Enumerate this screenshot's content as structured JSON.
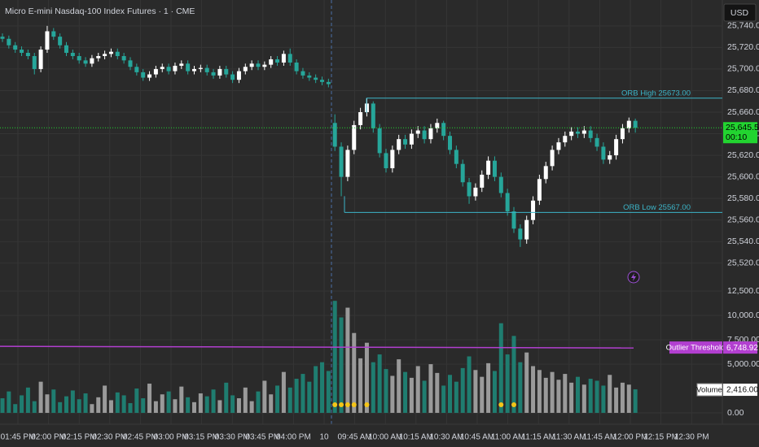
{
  "header": {
    "title": "Micro E-mini Nasdaq-100 Index Futures · 1 · CME",
    "currency": "USD"
  },
  "chart_data": [
    {
      "type": "candlestick",
      "up_color": "#ffffff",
      "down_color": "#26a69a",
      "open": [
        25730,
        25728,
        25722,
        25718,
        25715,
        25712,
        25700,
        25718,
        25735,
        25730,
        25722,
        25715,
        25712,
        25708,
        25705,
        25710,
        25712,
        25714,
        25716,
        25712,
        25708,
        25702,
        25697,
        25692,
        25695,
        25700,
        25702,
        25698,
        25703,
        25705,
        25698,
        25700,
        25701,
        25697,
        25694,
        25700,
        25695,
        25690,
        25698,
        25702,
        25705,
        25702,
        25704,
        25709,
        25706,
        25714,
        25706,
        25698,
        25694,
        25692,
        25690,
        25688,
        25650,
        25628,
        25600,
        25625,
        25648,
        25660,
        25668,
        25645,
        25622,
        25608,
        25625,
        25635,
        25630,
        25640,
        25643,
        25635,
        25645,
        25650,
        25638,
        25625,
        25612,
        25595,
        25582,
        25590,
        25602,
        25615,
        25600,
        25585,
        25568,
        25552,
        25542,
        25560,
        25578,
        25598,
        25610,
        25625,
        25632,
        25638,
        25642,
        25640,
        25643,
        25636,
        25628,
        25616,
        25620,
        25635,
        25645,
        25652
      ],
      "high": [
        25733,
        25731,
        25725,
        25721,
        25718,
        25715,
        25721,
        25740,
        25738,
        25733,
        25725,
        25718,
        25715,
        25711,
        25713,
        25715,
        25717,
        25719,
        25719,
        25715,
        25711,
        25705,
        25700,
        25698,
        25703,
        25705,
        25705,
        25706,
        25708,
        25708,
        25703,
        25704,
        25704,
        25700,
        25703,
        25703,
        25698,
        25701,
        25705,
        25708,
        25708,
        25707,
        25712,
        25712,
        25717,
        25719,
        25709,
        25701,
        25697,
        25695,
        25693,
        25691,
        25658,
        25632,
        25629,
        25652,
        25664,
        25673,
        25670,
        25649,
        25626,
        25629,
        25639,
        25639,
        25644,
        25647,
        25647,
        25649,
        25654,
        25652,
        25642,
        25629,
        25616,
        25599,
        25594,
        25606,
        25619,
        25619,
        25604,
        25589,
        25572,
        25556,
        25564,
        25582,
        25602,
        25614,
        25629,
        25636,
        25642,
        25646,
        25646,
        25647,
        25647,
        25640,
        25632,
        25624,
        25639,
        25649,
        25655,
        25654
      ],
      "low": [
        25725,
        25719,
        25715,
        25712,
        25709,
        25695,
        25697,
        25715,
        25727,
        25719,
        25712,
        25709,
        25705,
        25702,
        25702,
        25707,
        25709,
        25711,
        25709,
        25705,
        25699,
        25694,
        25689,
        25689,
        25692,
        25697,
        25695,
        25695,
        25700,
        25695,
        25695,
        25697,
        25694,
        25691,
        25691,
        25692,
        25687,
        25687,
        25695,
        25699,
        25699,
        25699,
        25701,
        25703,
        25703,
        25703,
        25695,
        25691,
        25689,
        25687,
        25685,
        25683,
        25624,
        25582,
        25596,
        25621,
        25644,
        25656,
        25641,
        25618,
        25604,
        25604,
        25621,
        25626,
        25626,
        25636,
        25631,
        25631,
        25641,
        25634,
        25621,
        25608,
        25591,
        25575,
        25578,
        25586,
        25598,
        25596,
        25581,
        25564,
        25548,
        25535,
        25538,
        25556,
        25574,
        25594,
        25606,
        25621,
        25628,
        25634,
        25636,
        25636,
        25632,
        25624,
        25612,
        25612,
        25616,
        25631,
        25641,
        25641
      ],
      "close": [
        25728,
        25722,
        25718,
        25715,
        25712,
        25700,
        25718,
        25735,
        25730,
        25722,
        25715,
        25712,
        25708,
        25705,
        25710,
        25712,
        25714,
        25716,
        25712,
        25708,
        25702,
        25697,
        25692,
        25695,
        25700,
        25702,
        25698,
        25703,
        25705,
        25698,
        25700,
        25701,
        25697,
        25694,
        25700,
        25695,
        25690,
        25698,
        25702,
        25705,
        25702,
        25704,
        25709,
        25706,
        25714,
        25706,
        25698,
        25694,
        25692,
        25690,
        25688,
        25686,
        25628,
        25600,
        25625,
        25648,
        25660,
        25668,
        25645,
        25622,
        25608,
        25625,
        25635,
        25630,
        25640,
        25643,
        25635,
        25645,
        25650,
        25638,
        25625,
        25612,
        25595,
        25582,
        25590,
        25602,
        25615,
        25600,
        25585,
        25568,
        25552,
        25542,
        25560,
        25578,
        25598,
        25610,
        25625,
        25632,
        25638,
        25642,
        25640,
        25643,
        25636,
        25628,
        25616,
        25620,
        25635,
        25645,
        25652,
        25645.5
      ],
      "last_price_label": "25,645.50",
      "last_price_color": "#22d430",
      "countdown": "00:10",
      "orb_high": {
        "value": 25673,
        "label": "ORB High 25673.00"
      },
      "orb_low": {
        "value": 25567,
        "label": "ORB Low 25567.00"
      },
      "orb_color": "#3cb4c8",
      "ylim": [
        25504,
        25764
      ],
      "yticks": [
        {
          "value": 25740,
          "label": "25,740.00"
        },
        {
          "value": 25720,
          "label": "25,720.00"
        },
        {
          "value": 25700,
          "label": "25,700.00"
        },
        {
          "value": 25680,
          "label": "25,680.00"
        },
        {
          "value": 25660,
          "label": "25,660.00"
        },
        {
          "value": 25640,
          "label": "25,640.00"
        },
        {
          "value": 25620,
          "label": "25,620.00"
        },
        {
          "value": 25600,
          "label": "25,600.00"
        },
        {
          "value": 25580,
          "label": "25,580.00"
        },
        {
          "value": 25560,
          "label": "25,560.00"
        },
        {
          "value": 25540,
          "label": "25,540.00"
        },
        {
          "value": 25520,
          "label": "25,520.00"
        }
      ],
      "time_labels": [
        "01:45 PM",
        "02:00 PM",
        "02:15 PM",
        "02:30 PM",
        "02:45 PM",
        "03:00 PM",
        "03:15 PM",
        "03:30 PM",
        "03:45 PM",
        "04:00 PM",
        "10",
        "09:45 AM",
        "10:00 AM",
        "10:15 AM",
        "10:30 AM",
        "10:45 AM",
        "11:00 AM",
        "11:15 AM",
        "11:30 AM",
        "11:45 AM",
        "12:00 PM",
        "12:15 PM",
        "12:30 PM"
      ],
      "grid": true
    },
    {
      "type": "bar",
      "name": "Volume",
      "up_color": "#9a9a9a",
      "down_color": "#1f7d70",
      "values": [
        1500,
        2200,
        900,
        1800,
        2600,
        1200,
        3200,
        1900,
        2400,
        1100,
        1700,
        2300,
        1400,
        2000,
        900,
        1600,
        2800,
        1300,
        2100,
        1800,
        1000,
        2500,
        1500,
        3000,
        1200,
        1900,
        2200,
        1400,
        2700,
        1600,
        1100,
        2000,
        1700,
        2400,
        1300,
        3100,
        1800,
        1500,
        2600,
        1200,
        2200,
        3300,
        1900,
        2800,
        4200,
        2600,
        3500,
        4000,
        3200,
        4800,
        5200,
        4300,
        11500,
        9800,
        10800,
        8200,
        5600,
        7200,
        5200,
        6000,
        4500,
        3800,
        5500,
        4200,
        3600,
        4800,
        3300,
        5000,
        4100,
        2800,
        3900,
        3200,
        4600,
        5800,
        4400,
        3700,
        5100,
        4300,
        9200,
        6000,
        7900,
        5200,
        6200,
        4800,
        4400,
        3600,
        4200,
        3400,
        4000,
        3100,
        3700,
        2900,
        3500,
        3300,
        2800,
        3900,
        2600,
        3100,
        2900,
        2416
      ],
      "last_value_label": "2,416.00",
      "threshold": {
        "name": "Outlier Threshold",
        "value": 6748.92,
        "label": "6,748.92",
        "color": "#b23fd0"
      },
      "outlier_color": "#f5c518",
      "ylim": [
        -1000,
        13600
      ],
      "yticks": [
        {
          "value": 12500,
          "label": "12,500.00"
        },
        {
          "value": 10000,
          "label": "10,000.00"
        },
        {
          "value": 7500,
          "label": "7,500.00"
        },
        {
          "value": 5000,
          "label": "5,000.00"
        },
        {
          "value": 0,
          "label": "0.00"
        }
      ]
    }
  ]
}
